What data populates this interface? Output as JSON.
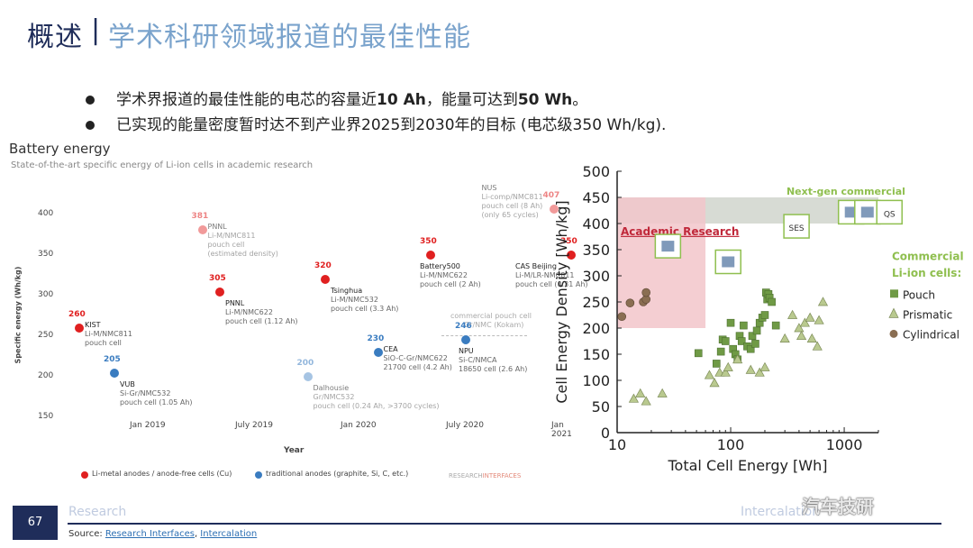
{
  "header": {
    "title_main": "概述",
    "separator": "|",
    "title_sub": "学术科研领域报道的最佳性能"
  },
  "bullets": [
    {
      "pre": "学术界报道的最佳性能的电芯的容量近",
      "b1": "10 Ah",
      "mid": "，能量可达到",
      "b2": "50 Wh",
      "post": "。"
    },
    {
      "text": "已实现的能量密度暂时达不到产业界2025到2030年的目标 (电芯级350 Wh/kg)."
    }
  ],
  "left_chart_header": {
    "title": "Battery energy",
    "subtitle": "State-of-the-art specific energy of Li-ion cells in academic research"
  },
  "chart_data": [
    {
      "type": "scatter",
      "title": "Battery energy",
      "subtitle": "State-of-the-art specific energy of Li-ion cells in academic research",
      "xlabel": "Year",
      "ylabel": "Specific energy (Wh/kg)",
      "ylim": [
        150,
        400
      ],
      "yticks": [
        "400",
        "350",
        "300",
        "250",
        "200",
        "150"
      ],
      "xticks": [
        "Jan 2019",
        "July 2019",
        "Jan 2020",
        "July 2020",
        "Jan 2021"
      ],
      "legend": [
        {
          "label": "Li-metal anodes / anode-free cells (Cu)",
          "color": "#e02020"
        },
        {
          "label": "traditional anodes (graphite, Si, C, etc.)",
          "color": "#3a7cc0"
        }
      ],
      "credit_a": "RESEARCH",
      "credit_b": "INTERFACES",
      "reference_note": [
        "commercial pouch cell",
        "Gr/NMC (Kokam)"
      ],
      "points": [
        {
          "date": "2018-09",
          "value": 260,
          "label": "260",
          "name": "KIST",
          "detail": [
            "Li-M/NMC811",
            "pouch cell"
          ],
          "group": "Li-metal",
          "faded": false
        },
        {
          "date": "2018-11",
          "value": 205,
          "label": "205",
          "name": "VUB",
          "detail": [
            "Si-Gr/NMC532",
            "pouch cell (1.05 Ah)"
          ],
          "group": "traditional",
          "faded": false
        },
        {
          "date": "2019-04",
          "value": 381,
          "label": "381",
          "name": "PNNL",
          "detail": [
            "Li-M/NMC811",
            "pouch cell",
            "(estimated density)"
          ],
          "group": "Li-metal",
          "faded": true
        },
        {
          "date": "2019-05",
          "value": 305,
          "label": "305",
          "name": "PNNL",
          "detail": [
            "Li-M/NMC622",
            "pouch cell (1.12 Ah)"
          ],
          "group": "Li-metal",
          "faded": false
        },
        {
          "date": "2019-10",
          "value": 200,
          "label": "200",
          "name": "Dalhousie",
          "detail": [
            "Gr/NMC532",
            "pouch cell (0.24 Ah, >3700 cycles)"
          ],
          "group": "traditional",
          "faded": true
        },
        {
          "date": "2019-11",
          "value": 320,
          "label": "320",
          "name": "Tsinghua",
          "detail": [
            "Li-M/NMC532",
            "pouch cell (3.3 Ah)"
          ],
          "group": "Li-metal",
          "faded": false
        },
        {
          "date": "2020-02",
          "value": 230,
          "label": "230",
          "name": "CEA",
          "detail": [
            "SiO-C-Gr/NMC622",
            "21700 cell (4.2 Ah)"
          ],
          "group": "traditional",
          "faded": false
        },
        {
          "date": "2020-05",
          "value": 350,
          "label": "350",
          "name": "Battery500",
          "detail": [
            "Li-M/NMC622",
            "pouch cell (2 Ah)"
          ],
          "group": "Li-metal",
          "faded": false
        },
        {
          "date": "2020-07",
          "value": 246,
          "label": "246",
          "name": "NPU",
          "detail": [
            "Si-C/NMCA",
            "18650 cell (2.6 Ah)"
          ],
          "group": "traditional",
          "faded": false
        },
        {
          "date": "2020-12",
          "value": 407,
          "label": "407",
          "name": "NUS",
          "detail": [
            "Li-comp/NMC811",
            "pouch cell (8 Ah)",
            "(only 65 cycles)"
          ],
          "group": "Li-metal",
          "faded": true
        },
        {
          "date": "2021-01",
          "value": 350,
          "label": "350",
          "name": "CAS Beijing",
          "detail": [
            "Li-M/LR-NMC811",
            "pouch cell (0.31 Ah)"
          ],
          "group": "Li-metal",
          "faded": false
        }
      ]
    },
    {
      "type": "scatter",
      "xlabel": "Total Cell Energy [Wh]",
      "ylabel": "Cell Energy Density [Wh/kg]",
      "x_scale": "log",
      "xlim": [
        10,
        2000
      ],
      "ylim": [
        0,
        500
      ],
      "xticks": [
        "10",
        "100",
        "1000"
      ],
      "yticks": [
        "0",
        "50",
        "100",
        "150",
        "200",
        "250",
        "300",
        "350",
        "400",
        "450",
        "500"
      ],
      "grid": false,
      "region_labels": {
        "academic": "Academic Research",
        "nextgen": "Next-gen commercial"
      },
      "legend_title": [
        "Commercial",
        "Li-ion cells:"
      ],
      "legend": [
        {
          "label": "Pouch",
          "marker": "square",
          "color": "#6f9a45"
        },
        {
          "label": "Prismatic",
          "marker": "triangle",
          "color": "#b9c98f"
        },
        {
          "label": "Cylindrical",
          "marker": "circle",
          "color": "#8a6e52"
        }
      ],
      "series": [
        {
          "name": "Pouch",
          "points": [
            [
              52,
              152
            ],
            [
              75,
              132
            ],
            [
              82,
              155
            ],
            [
              85,
              178
            ],
            [
              90,
              175
            ],
            [
              100,
              210
            ],
            [
              105,
              160
            ],
            [
              110,
              150
            ],
            [
              115,
              140
            ],
            [
              120,
              185
            ],
            [
              125,
              175
            ],
            [
              130,
              205
            ],
            [
              140,
              165
            ],
            [
              150,
              160
            ],
            [
              155,
              185
            ],
            [
              165,
              170
            ],
            [
              170,
              195
            ],
            [
              180,
              210
            ],
            [
              190,
              220
            ],
            [
              200,
              225
            ],
            [
              205,
              268
            ],
            [
              210,
              255
            ],
            [
              215,
              265
            ],
            [
              220,
              258
            ],
            [
              230,
              250
            ],
            [
              250,
              205
            ]
          ]
        },
        {
          "name": "Prismatic",
          "points": [
            [
              14,
              65
            ],
            [
              16,
              75
            ],
            [
              18,
              60
            ],
            [
              25,
              75
            ],
            [
              65,
              110
            ],
            [
              72,
              95
            ],
            [
              80,
              115
            ],
            [
              90,
              115
            ],
            [
              95,
              125
            ],
            [
              115,
              140
            ],
            [
              150,
              120
            ],
            [
              180,
              115
            ],
            [
              200,
              125
            ],
            [
              300,
              180
            ],
            [
              350,
              225
            ],
            [
              400,
              200
            ],
            [
              420,
              185
            ],
            [
              450,
              210
            ],
            [
              500,
              220
            ],
            [
              520,
              180
            ],
            [
              580,
              165
            ],
            [
              600,
              215
            ],
            [
              650,
              250
            ]
          ]
        },
        {
          "name": "Cylindrical",
          "points": [
            [
              11,
              222
            ],
            [
              13,
              248
            ],
            [
              17,
              250
            ],
            [
              18,
              255
            ],
            [
              18,
              268
            ]
          ]
        }
      ],
      "regions": [
        {
          "name": "Academic Research",
          "x": [
            10,
            60
          ],
          "y": [
            200,
            450
          ]
        },
        {
          "name": "Next-gen commercial",
          "x": [
            10,
            2000
          ],
          "y": [
            400,
            450
          ]
        }
      ],
      "logos": [
        {
          "icon": "cell-maker-logo",
          "text": "",
          "x": 28,
          "y": 355
        },
        {
          "icon": "cell-maker-logo",
          "text": "",
          "x": 95,
          "y": 325
        },
        {
          "icon": "cell-maker-logo",
          "text": "SES",
          "x": 380,
          "y": 393
        },
        {
          "icon": "cell-maker-logo",
          "text": "",
          "x": 1150,
          "y": 420
        },
        {
          "icon": "cell-maker-logo",
          "text": "",
          "x": 1600,
          "y": 420
        },
        {
          "icon": "cell-maker-logo",
          "text": "QS",
          "x": 2500,
          "y": 420
        }
      ]
    }
  ],
  "footer": {
    "page_number": "67",
    "research": "Research",
    "intercalation": "Intercalation",
    "source_prefix": "Source: ",
    "source_link1": "Research Interfaces",
    "source_sep": ", ",
    "source_link2": "Intercalation",
    "watermark": "汽车技研"
  },
  "colors": {
    "title_dark": "#1f2d5a",
    "title_light": "#7aa3cc",
    "li_metal": "#e02020",
    "traditional": "#3a7cc0",
    "pouch": "#6f9a45",
    "prismatic": "#b9c98f",
    "cylindrical": "#8a6e52",
    "academic_box": "#f2c6ca",
    "nextgen_band": "#c9cfc6"
  }
}
